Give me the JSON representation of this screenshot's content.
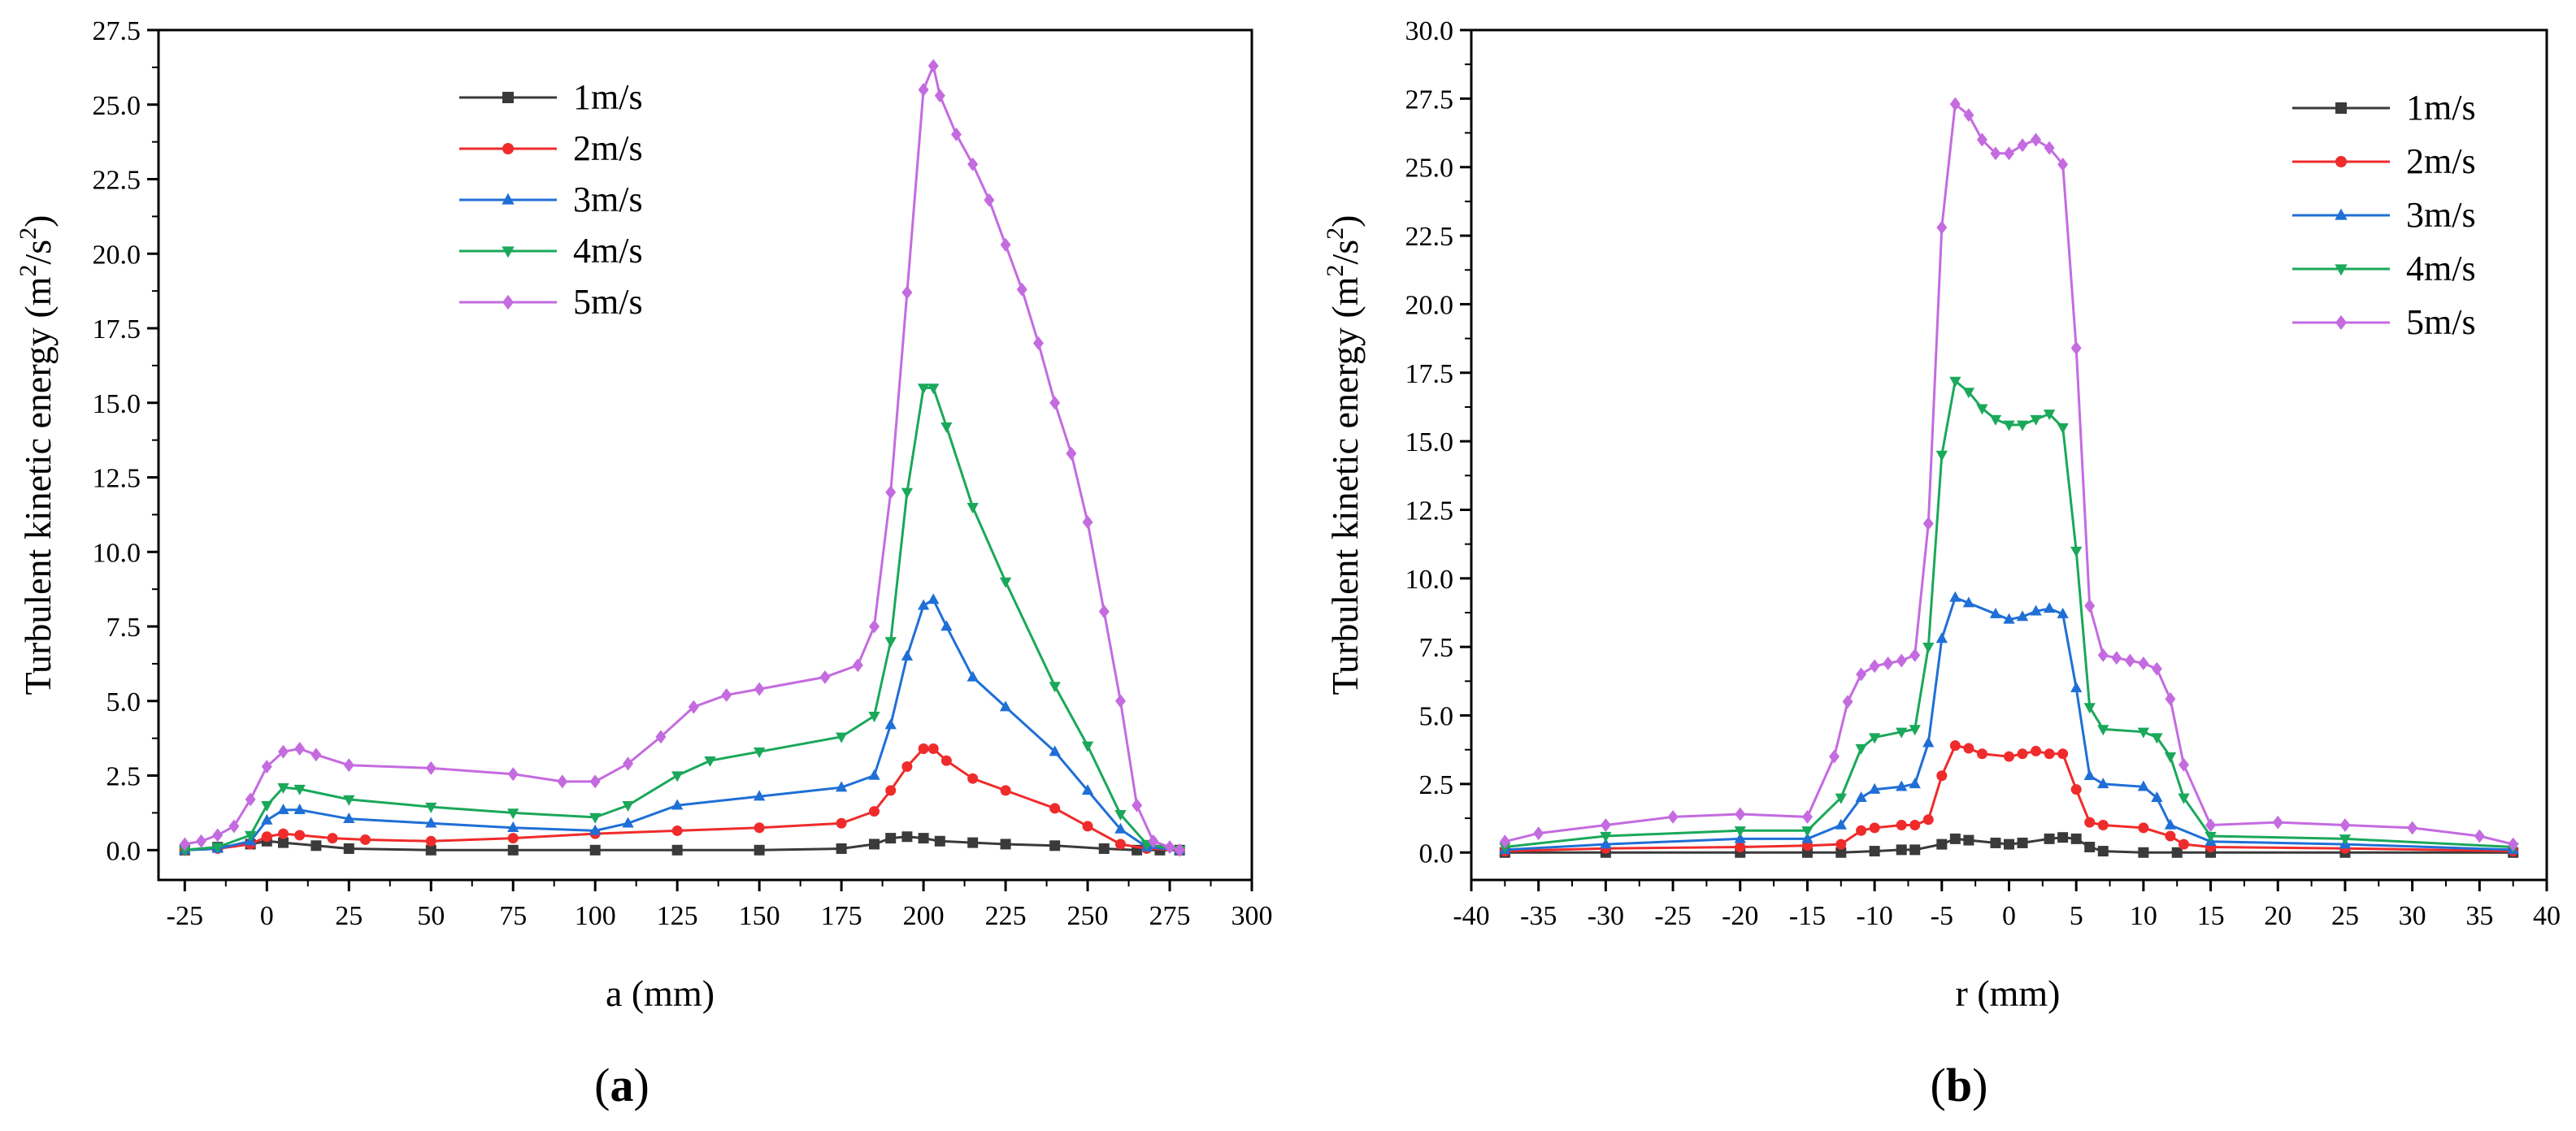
{
  "chart_data": [
    {
      "type": "line",
      "panel_label": "a",
      "xlabel": "a (mm)",
      "ylabel": "Turbulent kinetic energy (m²/s²)",
      "ylabel_parts": {
        "pre": "Turbulent kinetic energy (m",
        "sup1": "2",
        "mid": "/s",
        "sup2": "2",
        "post": ")"
      },
      "xlim": [
        -33,
        300
      ],
      "ylim": [
        -1.0,
        27.5
      ],
      "xticks": [
        -25,
        0,
        25,
        50,
        75,
        100,
        125,
        150,
        175,
        200,
        225,
        250,
        275,
        300
      ],
      "xtick_labels": [
        "-25",
        "0",
        "25",
        "50",
        "75",
        "100",
        "125",
        "150",
        "175",
        "200",
        "225",
        "250",
        "275",
        "300"
      ],
      "yticks": [
        0,
        2.5,
        5,
        7.5,
        10,
        12.5,
        15,
        17.5,
        20,
        22.5,
        25,
        27.5
      ],
      "ytick_labels": [
        "0.0",
        "2.5",
        "5.0",
        "7.5",
        "10.0",
        "12.5",
        "15.0",
        "17.5",
        "20.0",
        "22.5",
        "25.0",
        "27.5"
      ],
      "legend_position": "top-center",
      "series": [
        {
          "name": "1m/s",
          "color": "#3a3a3a",
          "marker": "square",
          "x": [
            -25,
            -15,
            -5,
            0,
            5,
            15,
            25,
            50,
            75,
            100,
            125,
            150,
            175,
            185,
            190,
            195,
            200,
            205,
            215,
            225,
            240,
            255,
            265,
            272,
            278
          ],
          "y": [
            0.0,
            0.1,
            0.2,
            0.3,
            0.25,
            0.15,
            0.05,
            0.0,
            0.0,
            0.0,
            0.0,
            0.0,
            0.05,
            0.2,
            0.4,
            0.45,
            0.4,
            0.3,
            0.25,
            0.2,
            0.15,
            0.05,
            0.0,
            0.0,
            0.0
          ]
        },
        {
          "name": "2m/s",
          "color": "#ef2b2b",
          "marker": "circle",
          "x": [
            -25,
            -15,
            -5,
            0,
            5,
            10,
            20,
            30,
            50,
            75,
            100,
            125,
            150,
            175,
            185,
            190,
            195,
            200,
            203,
            207,
            215,
            225,
            240,
            250,
            260,
            268,
            278
          ],
          "y": [
            0.0,
            0.05,
            0.2,
            0.45,
            0.55,
            0.5,
            0.4,
            0.35,
            0.3,
            0.4,
            0.55,
            0.65,
            0.75,
            0.9,
            1.3,
            2.0,
            2.8,
            3.4,
            3.4,
            3.0,
            2.4,
            2.0,
            1.4,
            0.8,
            0.2,
            0.05,
            0.0
          ]
        },
        {
          "name": "3m/s",
          "color": "#1f6fd6",
          "marker": "triangle-up",
          "x": [
            -25,
            -15,
            -5,
            0,
            5,
            10,
            25,
            50,
            75,
            100,
            110,
            125,
            150,
            175,
            185,
            190,
            195,
            200,
            203,
            207,
            215,
            225,
            240,
            250,
            260,
            268,
            278
          ],
          "y": [
            0.0,
            0.05,
            0.3,
            1.0,
            1.35,
            1.35,
            1.05,
            0.9,
            0.75,
            0.65,
            0.9,
            1.5,
            1.8,
            2.1,
            2.5,
            4.2,
            6.5,
            8.2,
            8.4,
            7.5,
            5.8,
            4.8,
            3.3,
            2.0,
            0.7,
            0.1,
            0.0
          ]
        },
        {
          "name": "4m/s",
          "color": "#1aa85a",
          "marker": "triangle-down",
          "x": [
            -25,
            -15,
            -5,
            0,
            5,
            10,
            25,
            50,
            75,
            100,
            110,
            125,
            135,
            150,
            175,
            185,
            190,
            195,
            200,
            203,
            207,
            215,
            225,
            240,
            250,
            260,
            268,
            278
          ],
          "y": [
            0.0,
            0.1,
            0.5,
            1.5,
            2.1,
            2.05,
            1.7,
            1.45,
            1.25,
            1.1,
            1.5,
            2.5,
            3.0,
            3.3,
            3.8,
            4.5,
            7.0,
            12.0,
            15.5,
            15.5,
            14.2,
            11.5,
            9.0,
            5.5,
            3.5,
            1.2,
            0.2,
            0.0
          ]
        },
        {
          "name": "5m/s",
          "color": "#c46be0",
          "marker": "diamond",
          "x": [
            -25,
            -20,
            -15,
            -10,
            -5,
            0,
            5,
            10,
            15,
            25,
            50,
            75,
            90,
            100,
            110,
            120,
            130,
            140,
            150,
            170,
            180,
            185,
            190,
            195,
            200,
            203,
            205,
            210,
            215,
            220,
            225,
            230,
            235,
            240,
            245,
            250,
            255,
            260,
            265,
            270,
            275,
            278
          ],
          "y": [
            0.2,
            0.3,
            0.5,
            0.8,
            1.7,
            2.8,
            3.3,
            3.4,
            3.2,
            2.85,
            2.75,
            2.55,
            2.3,
            2.3,
            2.9,
            3.8,
            4.8,
            5.2,
            5.4,
            5.8,
            6.2,
            7.5,
            12.0,
            18.7,
            25.5,
            26.3,
            25.3,
            24.0,
            23.0,
            21.8,
            20.3,
            18.8,
            17.0,
            15.0,
            13.3,
            11.0,
            8.0,
            5.0,
            1.5,
            0.3,
            0.1,
            0.0
          ]
        }
      ]
    },
    {
      "type": "line",
      "panel_label": "b",
      "xlabel": "r (mm)",
      "ylabel": "Turbulent kinetic energy (m²/s²)",
      "ylabel_parts": {
        "pre": "Turbulent kinetic energy (m",
        "sup1": "2",
        "mid": "/s",
        "sup2": "2",
        "post": ")"
      },
      "xlim": [
        -40,
        40
      ],
      "ylim": [
        -1.0,
        30.0
      ],
      "xticks": [
        -40,
        -35,
        -30,
        -25,
        -20,
        -15,
        -10,
        -5,
        0,
        5,
        10,
        15,
        20,
        25,
        30,
        35,
        40
      ],
      "xtick_labels": [
        "-40",
        "-35",
        "-30",
        "-25",
        "-20",
        "-15",
        "-10",
        "-5",
        "0",
        "5",
        "10",
        "15",
        "20",
        "25",
        "30",
        "35",
        "40"
      ],
      "yticks": [
        0,
        2.5,
        5,
        7.5,
        10,
        12.5,
        15,
        17.5,
        20,
        22.5,
        25,
        27.5,
        30
      ],
      "ytick_labels": [
        "0.0",
        "2.5",
        "5.0",
        "7.5",
        "10.0",
        "12.5",
        "15.0",
        "17.5",
        "20.0",
        "22.5",
        "25.0",
        "27.5",
        "30.0"
      ],
      "legend_position": "top-right",
      "series": [
        {
          "name": "1m/s",
          "color": "#3a3a3a",
          "marker": "square",
          "x": [
            -37.5,
            -30,
            -20,
            -15,
            -12.5,
            -10,
            -8,
            -7,
            -5,
            -4,
            -3,
            -1,
            0,
            1,
            3,
            4,
            5,
            6,
            7,
            10,
            12.5,
            15,
            25,
            37.5
          ],
          "y": [
            0.0,
            0.0,
            0.0,
            0.0,
            0.0,
            0.05,
            0.1,
            0.1,
            0.3,
            0.5,
            0.45,
            0.35,
            0.3,
            0.35,
            0.5,
            0.55,
            0.5,
            0.2,
            0.05,
            0.0,
            0.0,
            0.0,
            0.0,
            0.0
          ]
        },
        {
          "name": "2m/s",
          "color": "#ef2b2b",
          "marker": "circle",
          "x": [
            -37.5,
            -30,
            -20,
            -15,
            -12.5,
            -11,
            -10,
            -8,
            -7,
            -6,
            -5,
            -4,
            -3,
            -2,
            0,
            1,
            2,
            3,
            4,
            5,
            6,
            7,
            10,
            12,
            13,
            15,
            25,
            37.5
          ],
          "y": [
            0.05,
            0.15,
            0.2,
            0.25,
            0.3,
            0.8,
            0.9,
            1.0,
            1.0,
            1.2,
            2.8,
            3.9,
            3.8,
            3.6,
            3.5,
            3.6,
            3.7,
            3.6,
            3.6,
            2.3,
            1.1,
            1.0,
            0.9,
            0.6,
            0.3,
            0.2,
            0.15,
            0.05
          ]
        },
        {
          "name": "3m/s",
          "color": "#1f6fd6",
          "marker": "triangle-up",
          "x": [
            -37.5,
            -30,
            -20,
            -15,
            -12.5,
            -11,
            -10,
            -8,
            -7,
            -6,
            -5,
            -4,
            -3,
            -1,
            0,
            1,
            2,
            3,
            4,
            5,
            6,
            7,
            10,
            11,
            12,
            15,
            25,
            37.5
          ],
          "y": [
            0.1,
            0.3,
            0.5,
            0.5,
            1.0,
            2.0,
            2.3,
            2.4,
            2.5,
            4.0,
            7.8,
            9.3,
            9.1,
            8.7,
            8.5,
            8.6,
            8.8,
            8.9,
            8.7,
            6.0,
            2.8,
            2.5,
            2.4,
            2.0,
            1.0,
            0.4,
            0.3,
            0.1
          ]
        },
        {
          "name": "4m/s",
          "color": "#1aa85a",
          "marker": "triangle-down",
          "x": [
            -37.5,
            -30,
            -20,
            -15,
            -12.5,
            -11,
            -10,
            -8,
            -7,
            -6,
            -5,
            -4,
            -3,
            -2,
            -1,
            0,
            1,
            2,
            3,
            4,
            5,
            6,
            7,
            10,
            11,
            12,
            13,
            15,
            25,
            37.5
          ],
          "y": [
            0.2,
            0.6,
            0.8,
            0.8,
            2.0,
            3.8,
            4.2,
            4.4,
            4.5,
            7.5,
            14.5,
            17.2,
            16.8,
            16.2,
            15.8,
            15.6,
            15.6,
            15.8,
            16.0,
            15.5,
            11.0,
            5.3,
            4.5,
            4.4,
            4.2,
            3.5,
            2.0,
            0.6,
            0.5,
            0.2
          ]
        },
        {
          "name": "5m/s",
          "color": "#c46be0",
          "marker": "diamond",
          "x": [
            -37.5,
            -35,
            -30,
            -25,
            -20,
            -15,
            -13,
            -12,
            -11,
            -10,
            -9,
            -8,
            -7,
            -6,
            -5,
            -4,
            -3,
            -2,
            -1,
            0,
            1,
            2,
            3,
            4,
            5,
            6,
            7,
            8,
            9,
            10,
            11,
            12,
            13,
            15,
            20,
            25,
            30,
            35,
            37.5
          ],
          "y": [
            0.4,
            0.7,
            1.0,
            1.3,
            1.4,
            1.3,
            3.5,
            5.5,
            6.5,
            6.8,
            6.9,
            7.0,
            7.2,
            12.0,
            22.8,
            27.3,
            26.9,
            26.0,
            25.5,
            25.5,
            25.8,
            26.0,
            25.7,
            25.1,
            18.4,
            9.0,
            7.2,
            7.1,
            7.0,
            6.9,
            6.7,
            5.6,
            3.2,
            1.0,
            1.1,
            1.0,
            0.9,
            0.6,
            0.3
          ]
        }
      ]
    }
  ]
}
